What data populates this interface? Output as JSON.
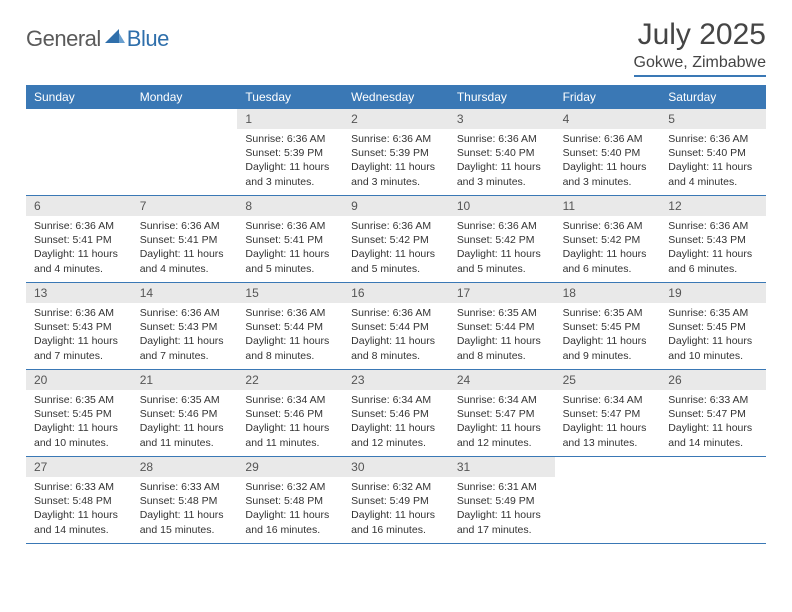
{
  "logo": {
    "general": "General",
    "blue": "Blue"
  },
  "title": "July 2025",
  "location": "Gokwe, Zimbabwe",
  "colors": {
    "accent": "#3a78b5",
    "daynum_bg": "#e9e9e9",
    "text": "#454545",
    "body_text": "#333333"
  },
  "weekdays": [
    "Sunday",
    "Monday",
    "Tuesday",
    "Wednesday",
    "Thursday",
    "Friday",
    "Saturday"
  ],
  "weeks": [
    [
      {
        "empty": true
      },
      {
        "empty": true
      },
      {
        "num": "1",
        "sunrise": "6:36 AM",
        "sunset": "5:39 PM",
        "daylight": "11 hours and 3 minutes."
      },
      {
        "num": "2",
        "sunrise": "6:36 AM",
        "sunset": "5:39 PM",
        "daylight": "11 hours and 3 minutes."
      },
      {
        "num": "3",
        "sunrise": "6:36 AM",
        "sunset": "5:40 PM",
        "daylight": "11 hours and 3 minutes."
      },
      {
        "num": "4",
        "sunrise": "6:36 AM",
        "sunset": "5:40 PM",
        "daylight": "11 hours and 3 minutes."
      },
      {
        "num": "5",
        "sunrise": "6:36 AM",
        "sunset": "5:40 PM",
        "daylight": "11 hours and 4 minutes."
      }
    ],
    [
      {
        "num": "6",
        "sunrise": "6:36 AM",
        "sunset": "5:41 PM",
        "daylight": "11 hours and 4 minutes."
      },
      {
        "num": "7",
        "sunrise": "6:36 AM",
        "sunset": "5:41 PM",
        "daylight": "11 hours and 4 minutes."
      },
      {
        "num": "8",
        "sunrise": "6:36 AM",
        "sunset": "5:41 PM",
        "daylight": "11 hours and 5 minutes."
      },
      {
        "num": "9",
        "sunrise": "6:36 AM",
        "sunset": "5:42 PM",
        "daylight": "11 hours and 5 minutes."
      },
      {
        "num": "10",
        "sunrise": "6:36 AM",
        "sunset": "5:42 PM",
        "daylight": "11 hours and 5 minutes."
      },
      {
        "num": "11",
        "sunrise": "6:36 AM",
        "sunset": "5:42 PM",
        "daylight": "11 hours and 6 minutes."
      },
      {
        "num": "12",
        "sunrise": "6:36 AM",
        "sunset": "5:43 PM",
        "daylight": "11 hours and 6 minutes."
      }
    ],
    [
      {
        "num": "13",
        "sunrise": "6:36 AM",
        "sunset": "5:43 PM",
        "daylight": "11 hours and 7 minutes."
      },
      {
        "num": "14",
        "sunrise": "6:36 AM",
        "sunset": "5:43 PM",
        "daylight": "11 hours and 7 minutes."
      },
      {
        "num": "15",
        "sunrise": "6:36 AM",
        "sunset": "5:44 PM",
        "daylight": "11 hours and 8 minutes."
      },
      {
        "num": "16",
        "sunrise": "6:36 AM",
        "sunset": "5:44 PM",
        "daylight": "11 hours and 8 minutes."
      },
      {
        "num": "17",
        "sunrise": "6:35 AM",
        "sunset": "5:44 PM",
        "daylight": "11 hours and 8 minutes."
      },
      {
        "num": "18",
        "sunrise": "6:35 AM",
        "sunset": "5:45 PM",
        "daylight": "11 hours and 9 minutes."
      },
      {
        "num": "19",
        "sunrise": "6:35 AM",
        "sunset": "5:45 PM",
        "daylight": "11 hours and 10 minutes."
      }
    ],
    [
      {
        "num": "20",
        "sunrise": "6:35 AM",
        "sunset": "5:45 PM",
        "daylight": "11 hours and 10 minutes."
      },
      {
        "num": "21",
        "sunrise": "6:35 AM",
        "sunset": "5:46 PM",
        "daylight": "11 hours and 11 minutes."
      },
      {
        "num": "22",
        "sunrise": "6:34 AM",
        "sunset": "5:46 PM",
        "daylight": "11 hours and 11 minutes."
      },
      {
        "num": "23",
        "sunrise": "6:34 AM",
        "sunset": "5:46 PM",
        "daylight": "11 hours and 12 minutes."
      },
      {
        "num": "24",
        "sunrise": "6:34 AM",
        "sunset": "5:47 PM",
        "daylight": "11 hours and 12 minutes."
      },
      {
        "num": "25",
        "sunrise": "6:34 AM",
        "sunset": "5:47 PM",
        "daylight": "11 hours and 13 minutes."
      },
      {
        "num": "26",
        "sunrise": "6:33 AM",
        "sunset": "5:47 PM",
        "daylight": "11 hours and 14 minutes."
      }
    ],
    [
      {
        "num": "27",
        "sunrise": "6:33 AM",
        "sunset": "5:48 PM",
        "daylight": "11 hours and 14 minutes."
      },
      {
        "num": "28",
        "sunrise": "6:33 AM",
        "sunset": "5:48 PM",
        "daylight": "11 hours and 15 minutes."
      },
      {
        "num": "29",
        "sunrise": "6:32 AM",
        "sunset": "5:48 PM",
        "daylight": "11 hours and 16 minutes."
      },
      {
        "num": "30",
        "sunrise": "6:32 AM",
        "sunset": "5:49 PM",
        "daylight": "11 hours and 16 minutes."
      },
      {
        "num": "31",
        "sunrise": "6:31 AM",
        "sunset": "5:49 PM",
        "daylight": "11 hours and 17 minutes."
      },
      {
        "empty": true
      },
      {
        "empty": true
      }
    ]
  ],
  "labels": {
    "sunrise": "Sunrise:",
    "sunset": "Sunset:",
    "daylight": "Daylight:"
  }
}
